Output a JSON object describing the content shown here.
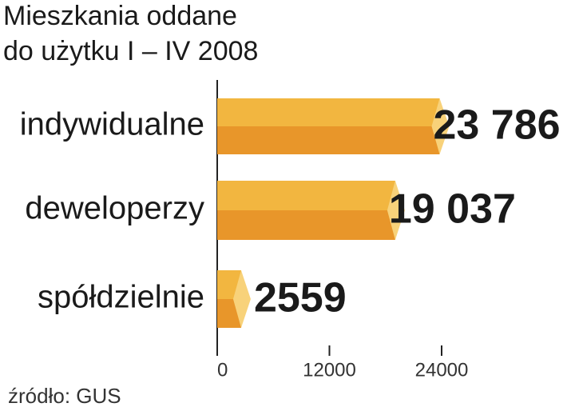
{
  "chart_data": {
    "type": "bar",
    "orientation": "horizontal",
    "title": [
      "Mieszkania oddane",
      "do użytku I – IV 2008"
    ],
    "categories": [
      "indywidualne",
      "deweloperzy",
      "spółdzielnie"
    ],
    "values": [
      23786,
      19037,
      2559
    ],
    "value_labels": [
      "23 786",
      "19 037",
      "2559"
    ],
    "xlim": [
      0,
      24000
    ],
    "xticks": [
      0,
      12000,
      24000
    ],
    "color": "#f2b640",
    "source": "źródło: GUS"
  }
}
